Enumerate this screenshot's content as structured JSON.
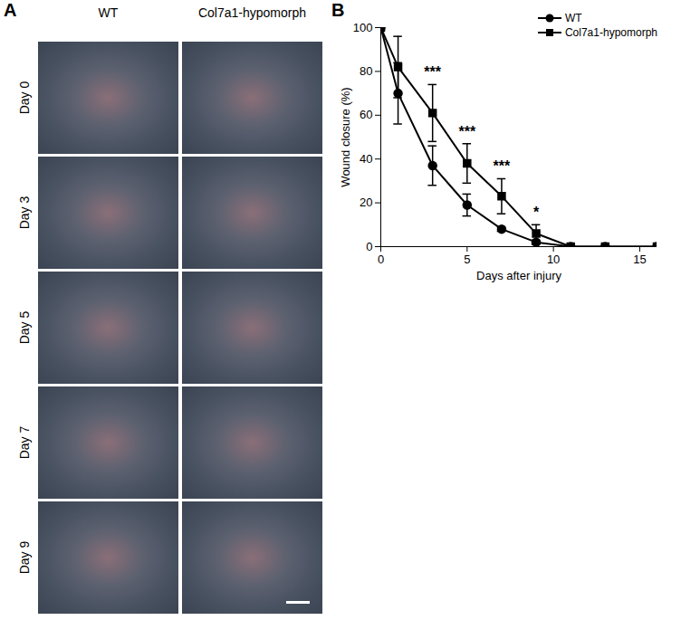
{
  "figure": {
    "panel_a": {
      "label": "A",
      "columns": [
        "WT",
        "Col7a1-hypomorph"
      ],
      "rows": [
        "Day 0",
        "Day 3",
        "Day 5",
        "Day 7",
        "Day 9"
      ]
    },
    "panel_b": {
      "label": "B"
    }
  },
  "chart_data": {
    "type": "line",
    "x": [
      0,
      1,
      3,
      5,
      7,
      9,
      11,
      13,
      16
    ],
    "series": [
      {
        "name": "WT",
        "color": "#000000",
        "marker": "circle",
        "line_style": "solid",
        "values": [
          100,
          70,
          37,
          19,
          8,
          2,
          0,
          0,
          0
        ],
        "errors": [
          0,
          14,
          9,
          5,
          1,
          1,
          0,
          0,
          0
        ]
      },
      {
        "name": "Col7a1-hypomorph",
        "color": "#000000",
        "marker": "square",
        "line_style": "solid",
        "values": [
          100,
          82,
          61,
          38,
          23,
          6,
          0,
          0,
          0
        ],
        "errors": [
          0,
          14,
          13,
          9,
          8,
          4,
          0,
          0,
          0
        ]
      }
    ],
    "x_label": "Days after injury",
    "y_label": "Wound closure (%)",
    "xlim": [
      0,
      16
    ],
    "xticks": [
      0,
      5,
      10,
      15
    ],
    "ylim": [
      0,
      100
    ],
    "yticks": [
      0,
      20,
      40,
      60,
      80,
      100
    ],
    "grid": false,
    "legend": "upper right",
    "annotations": [
      {
        "x": 3,
        "text": "***"
      },
      {
        "x": 5,
        "text": "***"
      },
      {
        "x": 7,
        "text": "***"
      },
      {
        "x": 9,
        "text": "*"
      }
    ]
  }
}
